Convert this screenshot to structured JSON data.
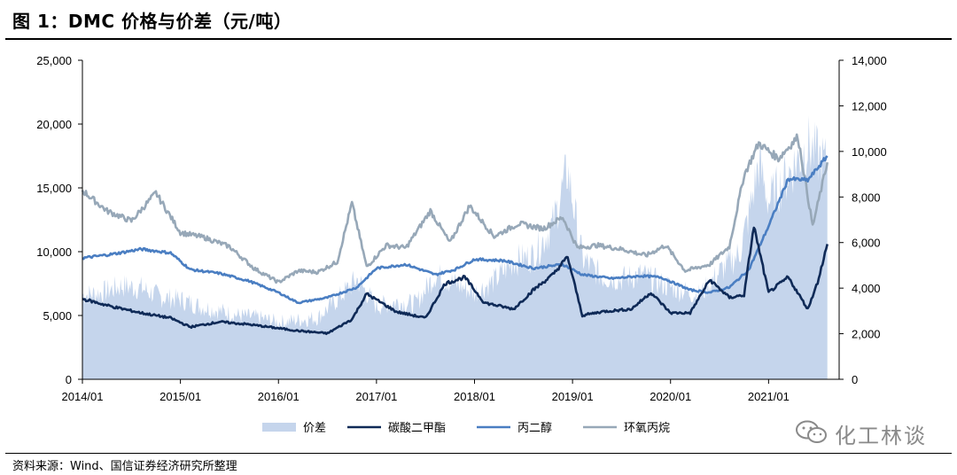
{
  "title": "图 1：DMC 价格与价差（元/吨）",
  "source": "资料来源：Wind、国信证券经济研究所整理",
  "watermark": {
    "text": "化工林谈",
    "icon": "wechat-icon"
  },
  "colors": {
    "spread_fill": "#c5d5ec",
    "dmc": "#0f2a57",
    "pg": "#4a7ec2",
    "po": "#97a8b8"
  },
  "chart_data": {
    "type": "line",
    "x_categories": [
      "2014/01",
      "2015/01",
      "2016/01",
      "2017/01",
      "2018/01",
      "2019/01",
      "2020/01",
      "2021/01"
    ],
    "left_axis": {
      "min": 0,
      "max": 25000,
      "ticks": [
        "0",
        "5,000",
        "10,000",
        "15,000",
        "20,000",
        "25,000"
      ]
    },
    "right_axis": {
      "min": 0,
      "max": 14000,
      "ticks": [
        "0",
        "2,000",
        "4,000",
        "6,000",
        "8,000",
        "10,000",
        "12,000",
        "14,000"
      ]
    },
    "legend_placement": "bottom",
    "series": [
      {
        "name": "价差",
        "kind": "area",
        "axis": "right",
        "x": [
          2014.0,
          2014.2,
          2014.4,
          2014.6,
          2014.8,
          2015.0,
          2015.2,
          2015.4,
          2015.6,
          2015.8,
          2016.0,
          2016.2,
          2016.4,
          2016.6,
          2016.8,
          2017.0,
          2017.2,
          2017.4,
          2017.6,
          2017.8,
          2018.0,
          2018.2,
          2018.4,
          2018.6,
          2018.8,
          2018.95,
          2019.1,
          2019.3,
          2019.5,
          2019.7,
          2019.9,
          2020.1,
          2020.3,
          2020.5,
          2020.7,
          2020.8,
          2020.9,
          2021.0,
          2021.2,
          2021.4,
          2021.5,
          2021.6
        ],
        "y": [
          3700,
          3800,
          4100,
          4000,
          3600,
          3500,
          3200,
          3000,
          2800,
          2700,
          2500,
          2600,
          2700,
          3500,
          4400,
          3200,
          3400,
          3300,
          4600,
          4200,
          3800,
          4300,
          5200,
          5400,
          6800,
          9200,
          5300,
          4500,
          4400,
          4600,
          4200,
          3900,
          3700,
          4700,
          5500,
          7200,
          9500,
          7800,
          9000,
          10300,
          9800,
          9400
        ]
      },
      {
        "name": "碳酸二甲酯",
        "kind": "line",
        "axis": "left",
        "x": [
          2014.0,
          2014.3,
          2014.6,
          2014.9,
          2015.1,
          2015.4,
          2015.7,
          2016.0,
          2016.2,
          2016.5,
          2016.75,
          2016.9,
          2017.2,
          2017.5,
          2017.7,
          2017.9,
          2018.1,
          2018.4,
          2018.6,
          2018.8,
          2018.95,
          2019.1,
          2019.3,
          2019.6,
          2019.8,
          2020.0,
          2020.2,
          2020.4,
          2020.6,
          2020.75,
          2020.85,
          2021.0,
          2021.2,
          2021.4,
          2021.5,
          2021.6
        ],
        "y": [
          6300,
          5700,
          5200,
          4800,
          4100,
          4500,
          4300,
          4000,
          3800,
          3600,
          4700,
          6700,
          5300,
          4800,
          7500,
          8000,
          6000,
          5500,
          7000,
          8200,
          9600,
          5000,
          5300,
          5500,
          6800,
          5200,
          5200,
          7800,
          6400,
          6600,
          12000,
          6800,
          8000,
          5500,
          7600,
          10600
        ]
      },
      {
        "name": "丙二醇",
        "kind": "line",
        "axis": "left",
        "x": [
          2014.0,
          2014.3,
          2014.6,
          2014.9,
          2015.1,
          2015.4,
          2015.7,
          2016.0,
          2016.2,
          2016.5,
          2016.8,
          2017.0,
          2017.3,
          2017.6,
          2017.8,
          2018.0,
          2018.3,
          2018.6,
          2018.9,
          2019.1,
          2019.4,
          2019.7,
          2019.9,
          2020.2,
          2020.4,
          2020.6,
          2020.8,
          2021.0,
          2021.2,
          2021.4,
          2021.6
        ],
        "y": [
          9500,
          9800,
          10200,
          9900,
          8600,
          8300,
          7700,
          6800,
          6000,
          6400,
          7200,
          8700,
          9000,
          8200,
          8600,
          9400,
          9300,
          8700,
          9000,
          8200,
          7900,
          8100,
          8000,
          7000,
          6800,
          7200,
          8600,
          12000,
          15700,
          15600,
          17500
        ]
      },
      {
        "name": "环氧丙烷",
        "kind": "line",
        "axis": "left",
        "x": [
          2014.0,
          2014.25,
          2014.5,
          2014.75,
          2015.0,
          2015.25,
          2015.5,
          2015.75,
          2016.0,
          2016.2,
          2016.4,
          2016.6,
          2016.75,
          2016.9,
          2017.1,
          2017.3,
          2017.55,
          2017.75,
          2017.95,
          2018.2,
          2018.45,
          2018.7,
          2018.9,
          2019.05,
          2019.25,
          2019.5,
          2019.75,
          2019.95,
          2020.15,
          2020.4,
          2020.6,
          2020.75,
          2020.9,
          2021.1,
          2021.3,
          2021.45,
          2021.6
        ],
        "y": [
          14800,
          13200,
          12400,
          14600,
          11500,
          11100,
          10400,
          8700,
          7600,
          8500,
          8400,
          9200,
          13800,
          8800,
          10500,
          10300,
          13200,
          10700,
          13600,
          11200,
          12200,
          11800,
          12700,
          10300,
          10500,
          10200,
          9700,
          10500,
          8500,
          9000,
          10400,
          16000,
          18500,
          17300,
          19000,
          12000,
          17000
        ]
      }
    ]
  }
}
